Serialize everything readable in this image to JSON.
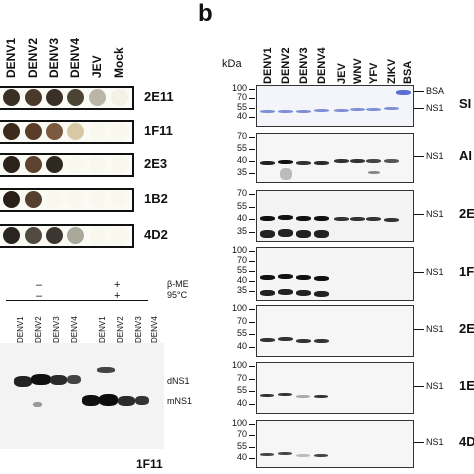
{
  "panel_b_letter": "b",
  "panel_a": {
    "columns": [
      "DENV1",
      "DENV2",
      "DENV3",
      "DENV4",
      "JEV",
      "Mock"
    ],
    "strips": [
      {
        "label": "2E11",
        "dots": [
          "#3a2f25",
          "#4a3a2c",
          "#3b3028",
          "#4b4334",
          "#b9b6a6",
          "#f4f2e6"
        ]
      },
      {
        "label": "1F11",
        "dots": [
          "#3c2a1c",
          "#5a3c28",
          "#7b5a40",
          "#d8c9a4",
          "#faf8ee",
          "#faf8ee"
        ]
      },
      {
        "label": "2E3",
        "dots": [
          "#2c231b",
          "#5e4230",
          "#2f2820",
          "#faf8ee",
          "#faf8ee",
          "#faf8ee"
        ]
      },
      {
        "label": "1B2",
        "dots": [
          "#2a2017",
          "#55402e",
          "#faf8ee",
          "#faf8ee",
          "#faf8ee",
          "#faf8ee"
        ]
      },
      {
        "label": "4D2",
        "dots": [
          "#2a2520",
          "#514a40",
          "#3c3630",
          "#a9a89a",
          "#faf8ee",
          "#faf8ee"
        ]
      }
    ]
  },
  "bottom_left": {
    "bme_label": "β-ME",
    "temp_label": "95°C",
    "signs_group1": [
      "–",
      "–"
    ],
    "signs_group2": [
      "+",
      "+"
    ],
    "lanes": [
      "DENV1",
      "DENV2",
      "DENV3",
      "DENV4",
      "DENV1",
      "DENV2",
      "DENV3",
      "DENV4"
    ],
    "dNS1": "dNS1",
    "mNS1": "mNS1",
    "antibody": "1F11"
  },
  "panel_b": {
    "kda_label": "kDa",
    "lanes": [
      "DENV1",
      "DENV2",
      "DENV3",
      "DENV4",
      "JEV",
      "WNV",
      "YFV",
      "ZIKV",
      "BSA"
    ],
    "blots": [
      {
        "name": "SI",
        "markers": [
          "100",
          "70",
          "55",
          "40"
        ],
        "labels": [
          "BSA",
          "NS1"
        ]
      },
      {
        "name": "AI",
        "markers": [
          "70",
          "55",
          "40",
          "35"
        ],
        "labels": [
          "NS1"
        ]
      },
      {
        "name": "2E",
        "markers": [
          "70",
          "55",
          "40",
          "35"
        ],
        "labels": [
          "NS1"
        ]
      },
      {
        "name": "1F",
        "markers": [
          "100",
          "70",
          "55",
          "40",
          "35"
        ],
        "labels": [
          "NS1"
        ]
      },
      {
        "name": "2E",
        "markers": [
          "100",
          "70",
          "55",
          "40"
        ],
        "labels": [
          "NS1"
        ]
      },
      {
        "name": "1E",
        "markers": [
          "100",
          "70",
          "55",
          "40"
        ],
        "labels": [
          "NS1"
        ]
      },
      {
        "name": "4D",
        "markers": [
          "100",
          "70",
          "55",
          "40"
        ],
        "labels": [
          "NS1"
        ]
      }
    ]
  }
}
